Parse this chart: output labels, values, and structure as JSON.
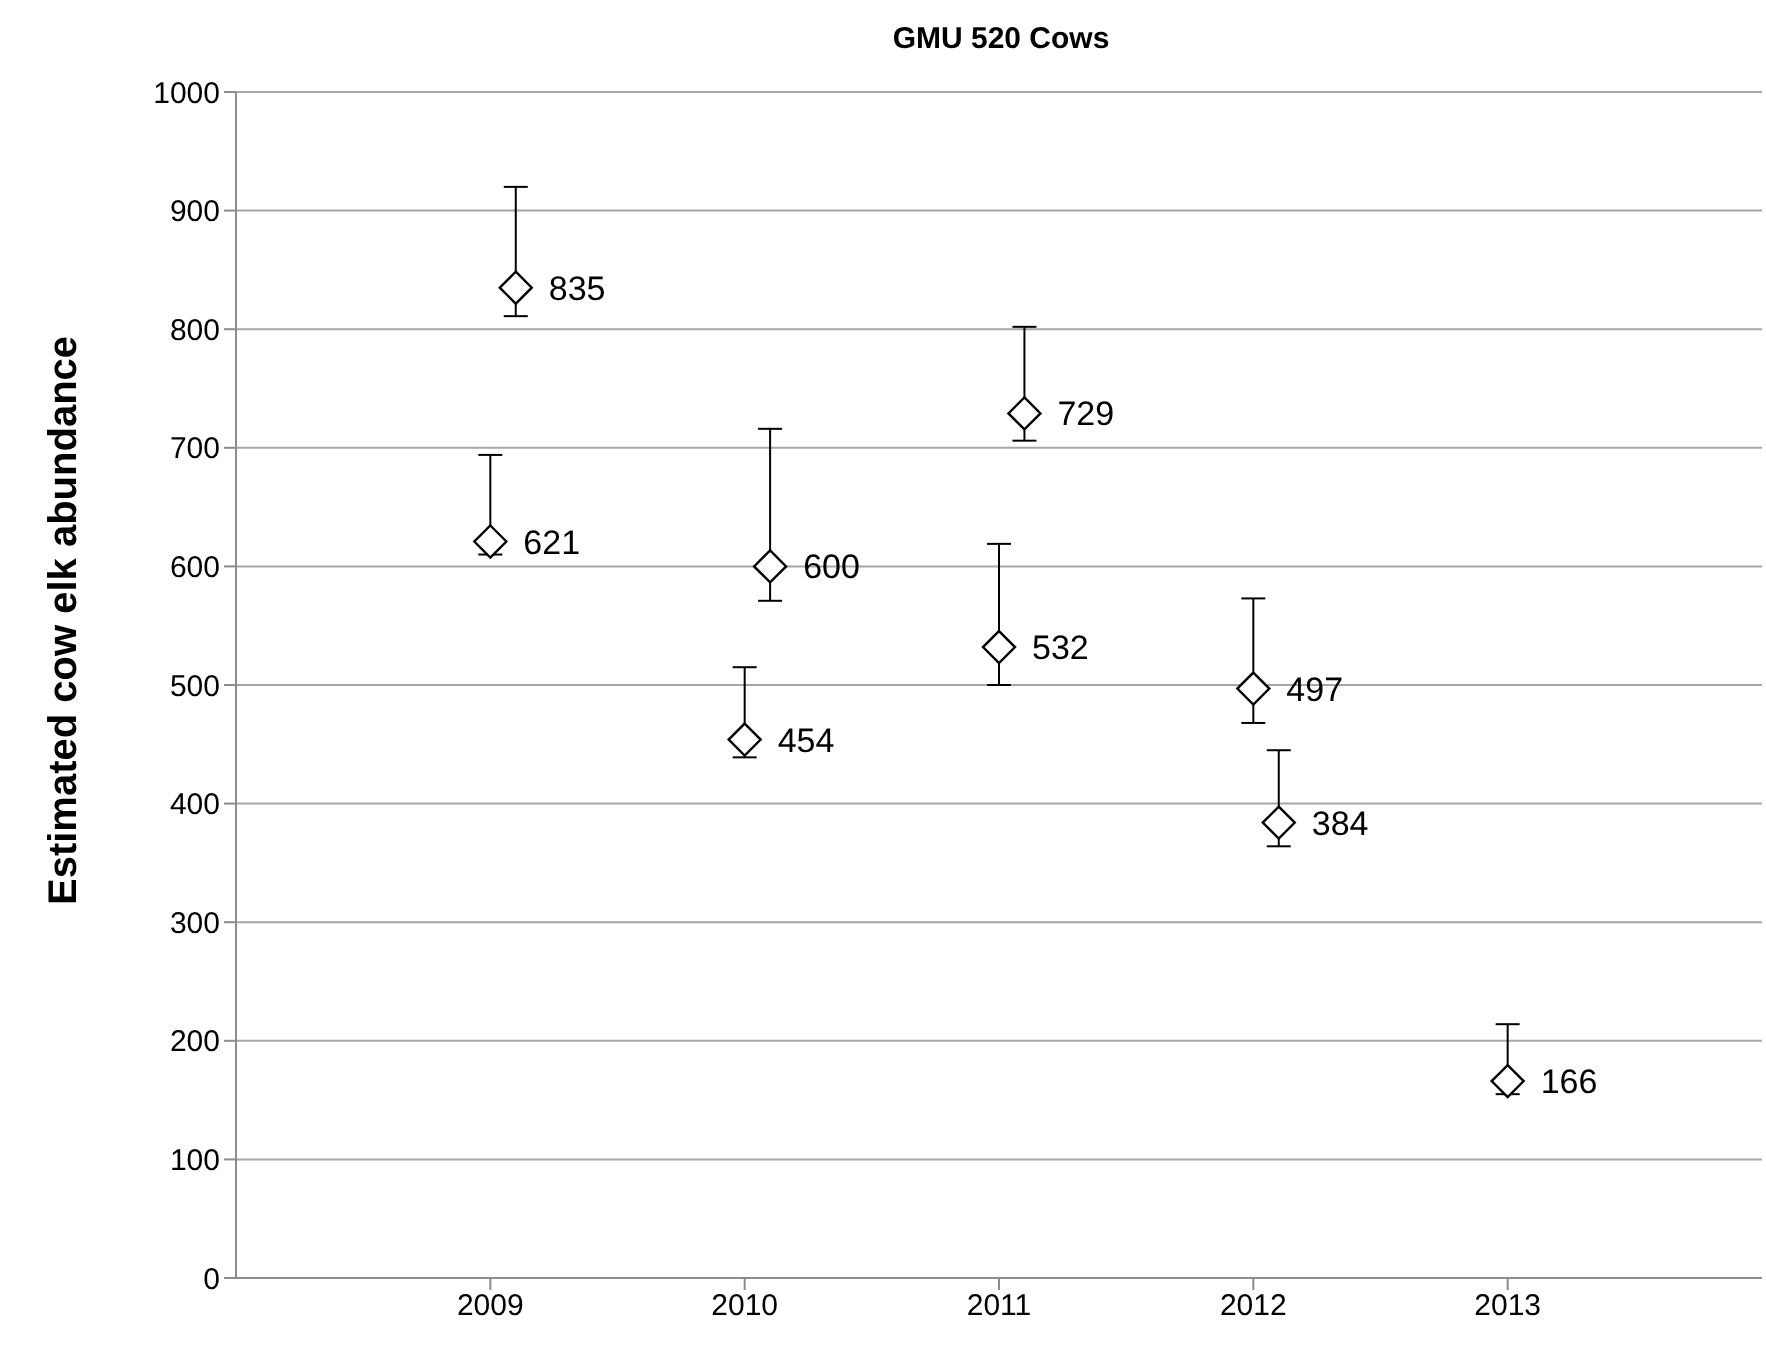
{
  "chart_data": {
    "type": "scatter",
    "title": "GMU 520 Cows",
    "ylabel": "Estimated cow elk abundance",
    "x": [
      2009.1,
      2009,
      2010,
      2010.1,
      2011,
      2011.1,
      2012,
      2012.1,
      2013
    ],
    "values": [
      835,
      621,
      454,
      600,
      532,
      729,
      497,
      384,
      166
    ],
    "errors": [
      [
        811,
        920
      ],
      [
        610,
        694
      ],
      [
        439,
        515
      ],
      [
        571,
        716
      ],
      [
        500,
        619
      ],
      [
        706,
        802
      ],
      [
        468,
        573
      ],
      [
        364,
        445
      ],
      [
        155,
        214
      ]
    ],
    "color": "#000000",
    "marker": "diamond",
    "data_labels": true,
    "grid": "y",
    "legend": false,
    "xlim": [
      2008,
      2014
    ],
    "xticks": [
      2009,
      2010,
      2011,
      2012,
      2013
    ],
    "ylim": [
      0,
      1000
    ],
    "yticks": [
      0,
      100,
      200,
      300,
      400,
      500,
      600,
      700,
      800,
      900,
      1000
    ]
  }
}
